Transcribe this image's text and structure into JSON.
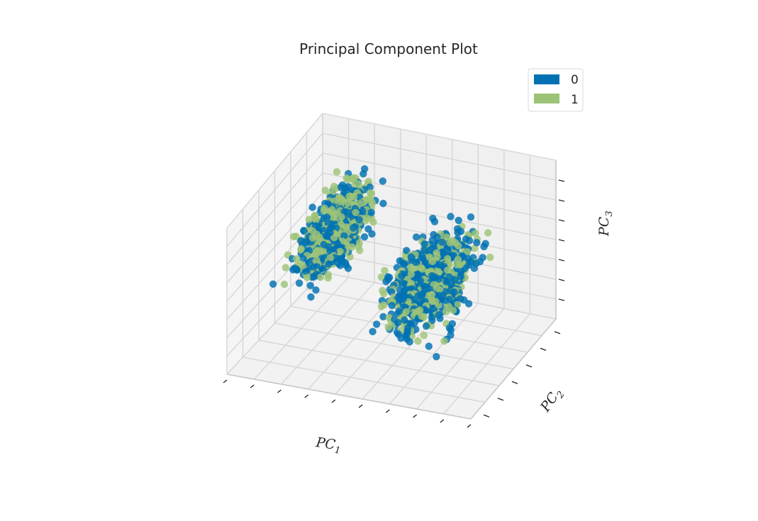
{
  "chart_data": {
    "type": "scatter",
    "dimensions": 3,
    "title": "Principal Component Plot",
    "xlabel": "PC",
    "xlabel_sub": "1",
    "ylabel": "PC",
    "ylabel_sub": "2",
    "zlabel": "PC",
    "zlabel_sub": "3",
    "tick_labels_shown": false,
    "grid": true,
    "legend_placement": "top-right",
    "series": [
      {
        "name": "0",
        "color": "#0072b2"
      },
      {
        "name": "1",
        "color": "#9dc377"
      }
    ],
    "clusters": [
      {
        "center": [
          -0.55,
          0.15,
          0.25
        ],
        "spread": [
          0.1,
          0.5,
          0.18
        ],
        "ratio": 0.5
      },
      {
        "center": [
          0.35,
          -0.1,
          0.0
        ],
        "spread": [
          0.22,
          0.55,
          0.16
        ],
        "ratio": 0.6
      }
    ]
  }
}
